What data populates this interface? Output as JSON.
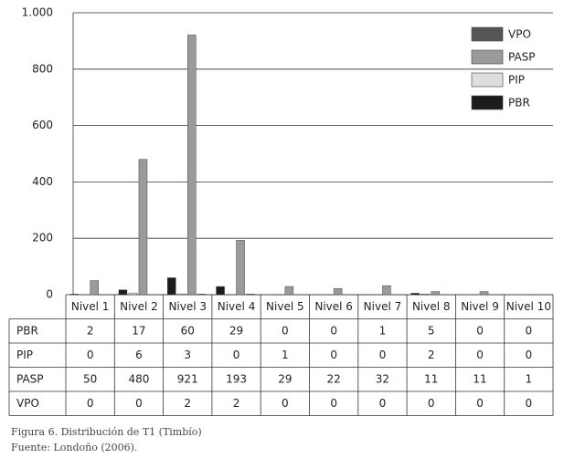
{
  "chart_data": {
    "type": "bar",
    "categories": [
      "Nivel 1",
      "Nivel 2",
      "Nivel 3",
      "Nivel 4",
      "Nivel 5",
      "Nivel 6",
      "Nivel 7",
      "Nivel 8",
      "Nivel 9",
      "Nivel 10"
    ],
    "series": [
      {
        "name": "PBR",
        "color": "#1c1c1c",
        "values": [
          2,
          17,
          60,
          29,
          0,
          0,
          1,
          5,
          0,
          0
        ]
      },
      {
        "name": "PIP",
        "color": "#dedede",
        "values": [
          0,
          6,
          3,
          0,
          1,
          0,
          0,
          2,
          0,
          0
        ]
      },
      {
        "name": "PASP",
        "color": "#9a9a9a",
        "values": [
          50,
          480,
          921,
          193,
          29,
          22,
          32,
          11,
          11,
          1
        ]
      },
      {
        "name": "VPO",
        "color": "#555555",
        "values": [
          0,
          0,
          2,
          2,
          0,
          0,
          0,
          0,
          0,
          0
        ]
      }
    ],
    "ylim": [
      0,
      1000
    ],
    "yticks": [
      0,
      200,
      400,
      600,
      800,
      {
        "value": 1000,
        "label": "1.000"
      }
    ],
    "grid": true,
    "legend": "top-right",
    "caption": "Figura 6. Distribución de T1 (Timbío)",
    "source": "Fuente: Londoño (2006)."
  }
}
